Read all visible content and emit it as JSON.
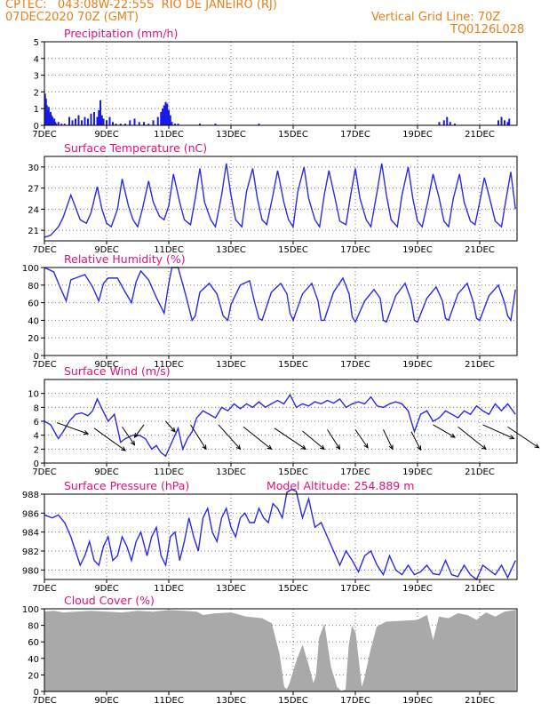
{
  "header": {
    "line1_left": "CPTEC:   043:08W-22:55S  RIO DE JANEIRO (RJ)",
    "line2_left": "07DEC2020 70Z (GMT)",
    "line1_right": "Vertical Grid Line: 70Z",
    "line2_right": "TQ0126L028"
  },
  "colors": {
    "header": "#e8801a",
    "title": "#e0107c",
    "line": "#2a2ae8",
    "bar": "#1a1ae6",
    "cloud": "#a9a9a9",
    "arrow": "#000000",
    "axis": "#000000"
  },
  "x_ticks": [
    "7DEC",
    "9DEC",
    "11DEC",
    "13DEC",
    "15DEC",
    "17DEC",
    "19DEC",
    "21DEC"
  ],
  "chart_data": [
    {
      "type": "bar",
      "title": "Precipitation (mm/h)",
      "ylim": [
        0,
        5
      ],
      "yticks": [
        0,
        1,
        2,
        3,
        4,
        5
      ],
      "x_days": [
        0.02,
        0.05,
        0.08,
        0.11,
        0.14,
        0.17,
        0.2,
        0.23,
        0.26,
        0.29,
        0.32,
        0.35,
        0.38,
        0.45,
        0.55,
        0.65,
        0.8,
        0.9,
        1.0,
        1.1,
        1.2,
        1.3,
        1.4,
        1.5,
        1.6,
        1.7,
        1.75,
        1.8,
        1.85,
        1.9,
        2.0,
        2.1,
        2.2,
        2.3,
        2.45,
        2.6,
        2.75,
        2.9,
        3.05,
        3.2,
        3.35,
        3.5,
        3.65,
        3.75,
        3.8,
        3.85,
        3.9,
        3.95,
        4.0,
        4.05,
        4.1,
        4.2,
        4.3,
        5.0,
        5.5,
        6.9,
        12.7,
        12.85,
        12.95,
        13.05,
        13.2,
        14.6,
        14.7,
        14.8,
        14.9,
        14.95
      ],
      "values": [
        1.9,
        1.6,
        1.2,
        0.9,
        1.1,
        0.7,
        0.8,
        0.6,
        0.5,
        0.3,
        0.4,
        0.2,
        0.1,
        0.2,
        0.1,
        0.1,
        0.5,
        0.3,
        0.4,
        0.6,
        0.3,
        0.5,
        0.4,
        0.7,
        0.8,
        0.5,
        0.9,
        1.5,
        0.6,
        0.4,
        0.3,
        0.5,
        0.2,
        0.1,
        0.1,
        0.1,
        0.3,
        0.4,
        0.2,
        0.2,
        0.1,
        0.3,
        0.5,
        0.8,
        1.0,
        1.2,
        1.4,
        1.3,
        0.9,
        0.6,
        0.2,
        0.1,
        0.1,
        0.1,
        0.1,
        0.1,
        0.2,
        0.3,
        0.5,
        0.2,
        0.1,
        0.3,
        0.5,
        0.3,
        0.2,
        0.4
      ]
    },
    {
      "type": "line",
      "title": "Surface Temperature (nC)",
      "ylim": [
        19.5,
        31.5
      ],
      "yticks": [
        21,
        24,
        27,
        30
      ],
      "x_days": [
        0,
        0.2,
        0.45,
        0.6,
        0.85,
        0.98,
        1.15,
        1.35,
        1.5,
        1.7,
        1.85,
        2.0,
        2.15,
        2.35,
        2.5,
        2.7,
        2.85,
        3.0,
        3.15,
        3.35,
        3.5,
        3.7,
        3.85,
        4.0,
        4.15,
        4.35,
        4.5,
        4.7,
        4.85,
        5.0,
        5.15,
        5.35,
        5.5,
        5.7,
        5.85,
        6.0,
        6.15,
        6.35,
        6.5,
        6.7,
        6.85,
        7.0,
        7.15,
        7.35,
        7.5,
        7.7,
        7.85,
        8.0,
        8.15,
        8.35,
        8.5,
        8.7,
        8.85,
        9.0,
        9.15,
        9.35,
        9.5,
        9.7,
        9.85,
        10.0,
        10.15,
        10.35,
        10.5,
        10.7,
        10.85,
        11.0,
        11.15,
        11.35,
        11.5,
        11.7,
        11.85,
        12.0,
        12.15,
        12.35,
        12.5,
        12.7,
        12.85,
        13.0,
        13.15,
        13.35,
        13.5,
        13.7,
        13.85,
        14.0,
        14.15,
        14.35,
        14.5,
        14.7,
        14.85,
        15.0,
        15.15
      ],
      "values": [
        20.0,
        20.3,
        21.5,
        22.8,
        26.0,
        24.5,
        22.5,
        22.0,
        23.5,
        27.2,
        24.0,
        22.0,
        21.5,
        24.0,
        28.3,
        24.5,
        22.5,
        21.5,
        24.0,
        28.0,
        25.0,
        23.0,
        22.5,
        24.5,
        29.0,
        25.0,
        22.5,
        21.8,
        25.5,
        29.8,
        25.0,
        22.5,
        21.5,
        26.0,
        30.5,
        26.0,
        22.5,
        21.5,
        26.5,
        29.8,
        25.5,
        22.5,
        21.8,
        26.0,
        29.5,
        25.0,
        22.5,
        21.5,
        26.5,
        30.0,
        25.5,
        22.5,
        21.5,
        26.0,
        29.5,
        25.5,
        22.3,
        21.8,
        26.0,
        29.8,
        25.5,
        22.5,
        21.5,
        26.5,
        30.5,
        26.0,
        22.5,
        21.5,
        26.0,
        30.0,
        25.5,
        22.3,
        21.5,
        25.5,
        29.0,
        25.5,
        22.3,
        21.5,
        25.5,
        29.0,
        25.0,
        22.3,
        21.8,
        25.0,
        28.5,
        25.0,
        22.3,
        21.5,
        25.5,
        29.3,
        24.0
      ]
    },
    {
      "type": "line",
      "title": "Relative Humidity (%)",
      "ylim": [
        0,
        100
      ],
      "yticks": [
        0,
        20,
        40,
        60,
        80,
        100
      ],
      "x_days": [
        0,
        0.3,
        0.5,
        0.7,
        0.85,
        1.0,
        1.3,
        1.55,
        1.75,
        1.9,
        2.05,
        2.35,
        2.6,
        2.8,
        2.95,
        3.1,
        3.35,
        3.6,
        3.85,
        4.0,
        4.1,
        4.3,
        4.55,
        4.75,
        4.85,
        5.0,
        5.3,
        5.55,
        5.75,
        5.9,
        6.0,
        6.3,
        6.6,
        6.75,
        6.9,
        7.0,
        7.3,
        7.6,
        7.8,
        7.9,
        8.0,
        8.3,
        8.6,
        8.8,
        8.9,
        9.0,
        9.3,
        9.6,
        9.8,
        9.9,
        10.0,
        10.3,
        10.6,
        10.8,
        10.9,
        11.0,
        11.3,
        11.6,
        11.8,
        11.9,
        12.0,
        12.3,
        12.6,
        12.8,
        12.9,
        13.0,
        13.3,
        13.6,
        13.8,
        13.9,
        14.0,
        14.3,
        14.6,
        14.8,
        14.9,
        15.0,
        15.15
      ],
      "values": [
        100,
        95,
        78,
        62,
        86,
        88,
        92,
        78,
        62,
        82,
        88,
        88,
        72,
        60,
        84,
        96,
        86,
        66,
        48,
        82,
        100,
        100,
        68,
        40,
        45,
        72,
        82,
        70,
        45,
        40,
        58,
        80,
        85,
        62,
        42,
        40,
        72,
        82,
        70,
        48,
        40,
        70,
        82,
        62,
        40,
        40,
        72,
        88,
        70,
        44,
        38,
        62,
        75,
        65,
        40,
        38,
        68,
        82,
        62,
        40,
        38,
        65,
        78,
        62,
        42,
        40,
        70,
        82,
        60,
        42,
        40,
        68,
        80,
        60,
        45,
        40,
        75
      ]
    },
    {
      "type": "line",
      "title": "Surface Wind (m/s)",
      "ylim": [
        0,
        12
      ],
      "yticks": [
        0,
        2,
        4,
        6,
        8,
        10
      ],
      "x_days": [
        0,
        0.2,
        0.45,
        0.6,
        0.8,
        1.0,
        1.2,
        1.4,
        1.55,
        1.7,
        1.85,
        2.05,
        2.25,
        2.45,
        2.6,
        2.85,
        3.05,
        3.25,
        3.45,
        3.6,
        3.75,
        3.9,
        4.1,
        4.3,
        4.45,
        4.6,
        4.75,
        4.9,
        5.1,
        5.3,
        5.5,
        5.7,
        5.9,
        6.1,
        6.3,
        6.5,
        6.7,
        6.9,
        7.1,
        7.3,
        7.5,
        7.7,
        7.9,
        8.1,
        8.3,
        8.5,
        8.7,
        8.9,
        9.1,
        9.3,
        9.5,
        9.7,
        9.9,
        10.1,
        10.3,
        10.5,
        10.7,
        10.9,
        11.1,
        11.3,
        11.5,
        11.7,
        11.9,
        12.1,
        12.3,
        12.5,
        12.7,
        12.9,
        13.1,
        13.3,
        13.5,
        13.7,
        13.9,
        14.1,
        14.3,
        14.5,
        14.7,
        14.9,
        15.15
      ],
      "values": [
        6.0,
        5.5,
        3.5,
        4.5,
        6.0,
        7.0,
        7.2,
        6.8,
        7.5,
        9.2,
        7.8,
        6.0,
        7.0,
        3.0,
        3.5,
        4.0,
        4.0,
        3.5,
        2.0,
        2.5,
        1.5,
        1.0,
        3.0,
        5.0,
        2.0,
        3.5,
        4.5,
        6.5,
        7.5,
        7.0,
        6.5,
        8.0,
        7.5,
        8.5,
        7.8,
        8.5,
        8.0,
        8.8,
        8.0,
        8.5,
        9.0,
        8.5,
        9.8,
        8.0,
        8.5,
        8.2,
        8.8,
        8.5,
        9.0,
        8.6,
        9.2,
        8.0,
        8.5,
        8.8,
        8.5,
        9.5,
        8.2,
        8.0,
        8.5,
        8.8,
        8.5,
        7.5,
        4.5,
        7.0,
        7.5,
        6.0,
        6.5,
        7.5,
        7.0,
        6.5,
        7.5,
        7.0,
        8.2,
        7.5,
        7.0,
        8.5,
        7.5,
        8.5,
        7.0
      ],
      "arrows": [
        {
          "x": 0.4,
          "y": 5.8,
          "dx": 1.0,
          "dy": -1.6
        },
        {
          "x": 1.6,
          "y": 5.0,
          "dx": 1.0,
          "dy": -3.2
        },
        {
          "x": 2.5,
          "y": 5.2,
          "dx": 0.4,
          "dy": -2.6
        },
        {
          "x": 3.2,
          "y": 5.5,
          "dx": -0.3,
          "dy": -1.8
        },
        {
          "x": 3.9,
          "y": 6.0,
          "dx": 0.3,
          "dy": -1.5
        },
        {
          "x": 4.7,
          "y": 5.5,
          "dx": 0.5,
          "dy": -3.5
        },
        {
          "x": 5.6,
          "y": 5.5,
          "dx": 0.7,
          "dy": -3.5
        },
        {
          "x": 6.4,
          "y": 5.2,
          "dx": 0.9,
          "dy": -3.2
        },
        {
          "x": 7.4,
          "y": 5.0,
          "dx": 1.0,
          "dy": -3.0
        },
        {
          "x": 8.3,
          "y": 4.6,
          "dx": 0.7,
          "dy": -2.6
        },
        {
          "x": 9.1,
          "y": 4.8,
          "dx": 0.4,
          "dy": -2.8
        },
        {
          "x": 10.0,
          "y": 4.8,
          "dx": 0.4,
          "dy": -2.6
        },
        {
          "x": 10.9,
          "y": 4.8,
          "dx": 0.3,
          "dy": -2.8
        },
        {
          "x": 11.8,
          "y": 4.5,
          "dx": 0.3,
          "dy": -2.6
        },
        {
          "x": 12.5,
          "y": 5.5,
          "dx": 0.7,
          "dy": -1.8
        },
        {
          "x": 13.3,
          "y": 5.2,
          "dx": 0.9,
          "dy": -3.2
        },
        {
          "x": 14.1,
          "y": 5.5,
          "dx": 1.0,
          "dy": -2.0
        },
        {
          "x": 14.9,
          "y": 5.2,
          "dx": 1.0,
          "dy": -3.0
        }
      ]
    },
    {
      "type": "line",
      "title": "Surface Pressure (hPa)",
      "annotation": "Model Altitude: 254.889 m",
      "ylim": [
        979,
        988
      ],
      "yticks": [
        980,
        982,
        984,
        986,
        988
      ],
      "x_days": [
        0,
        0.25,
        0.45,
        0.65,
        0.85,
        1.0,
        1.15,
        1.3,
        1.45,
        1.6,
        1.75,
        1.9,
        2.05,
        2.2,
        2.35,
        2.5,
        2.65,
        2.8,
        2.95,
        3.1,
        3.3,
        3.45,
        3.6,
        3.75,
        3.9,
        4.05,
        4.2,
        4.35,
        4.5,
        4.65,
        4.8,
        4.95,
        5.1,
        5.25,
        5.4,
        5.55,
        5.7,
        5.85,
        6.0,
        6.15,
        6.3,
        6.45,
        6.6,
        6.75,
        6.9,
        7.05,
        7.2,
        7.35,
        7.5,
        7.65,
        7.8,
        7.95,
        8.1,
        8.3,
        8.5,
        8.7,
        8.9,
        9.1,
        9.3,
        9.5,
        9.7,
        9.9,
        10.1,
        10.3,
        10.5,
        10.7,
        10.9,
        11.1,
        11.3,
        11.5,
        11.7,
        11.9,
        12.1,
        12.3,
        12.5,
        12.7,
        12.9,
        13.1,
        13.3,
        13.5,
        13.7,
        13.9,
        14.1,
        14.3,
        14.5,
        14.7,
        14.9,
        15.15
      ],
      "values": [
        985.8,
        985.5,
        985.8,
        985.0,
        983.5,
        982.0,
        980.5,
        981.5,
        983.0,
        981.0,
        980.5,
        982.5,
        983.5,
        981.0,
        981.5,
        983.5,
        982.5,
        981.0,
        983.0,
        984.0,
        981.5,
        983.5,
        984.5,
        981.5,
        980.5,
        983.5,
        984.0,
        981.0,
        983.0,
        985.5,
        983.5,
        982.0,
        985.5,
        986.5,
        984.0,
        983.0,
        985.5,
        986.5,
        984.5,
        983.5,
        985.5,
        986.0,
        985.0,
        985.0,
        986.5,
        985.5,
        985.0,
        987.0,
        986.5,
        985.5,
        988.2,
        988.5,
        988.3,
        985.5,
        987.5,
        984.5,
        985.0,
        983.5,
        982.0,
        980.5,
        982.0,
        981.0,
        979.8,
        981.5,
        982.0,
        980.5,
        979.5,
        981.5,
        980.0,
        979.5,
        980.5,
        979.5,
        979.8,
        980.5,
        979.6,
        979.5,
        981.0,
        979.5,
        979.3,
        980.5,
        979.5,
        979.0,
        980.5,
        980.0,
        979.5,
        980.5,
        979.2,
        981.0
      ]
    },
    {
      "type": "area",
      "title": "Cloud Cover (%)",
      "ylim": [
        0,
        100
      ],
      "yticks": [
        0,
        20,
        40,
        60,
        80,
        100
      ],
      "x_days": [
        0,
        0.3,
        0.6,
        1.0,
        1.5,
        2.0,
        2.5,
        3.0,
        3.5,
        4.0,
        4.5,
        4.9,
        5.1,
        5.5,
        6.0,
        6.5,
        7.0,
        7.3,
        7.55,
        7.7,
        7.8,
        7.9,
        8.1,
        8.3,
        8.5,
        8.65,
        8.75,
        8.85,
        9.0,
        9.2,
        9.4,
        9.55,
        9.7,
        9.8,
        9.9,
        10.0,
        10.2,
        10.3,
        10.5,
        10.7,
        11.0,
        11.5,
        12.0,
        12.3,
        12.5,
        12.7,
        13.0,
        13.3,
        13.6,
        13.9,
        14.2,
        14.5,
        14.8,
        15.15
      ],
      "values": [
        96,
        97,
        95,
        96,
        97,
        96,
        95,
        97,
        96,
        98,
        97,
        96,
        92,
        94,
        95,
        90,
        88,
        82,
        45,
        5,
        2,
        10,
        35,
        55,
        30,
        8,
        20,
        65,
        80,
        30,
        5,
        0,
        2,
        55,
        78,
        70,
        3,
        15,
        50,
        78,
        84,
        85,
        86,
        92,
        60,
        90,
        88,
        94,
        92,
        86,
        95,
        90,
        96,
        98
      ]
    }
  ]
}
